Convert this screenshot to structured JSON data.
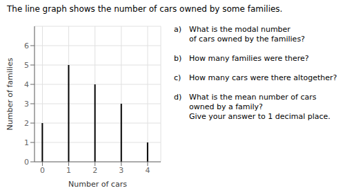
{
  "chart_data": {
    "type": "bar",
    "title": "The line graph shows the number of cars owned by some families.",
    "xlabel": "Number of cars",
    "ylabel": "Number of families",
    "x": [
      0,
      1,
      2,
      3,
      4
    ],
    "values": [
      2,
      5,
      4,
      3,
      1
    ],
    "color": "black",
    "xlim": [
      -0.3,
      4.5
    ],
    "ylim": [
      0,
      7
    ],
    "xticks": [
      0,
      1,
      2,
      3,
      4
    ],
    "yticks": [
      0,
      1,
      2,
      3,
      4,
      5,
      6
    ],
    "grid": true,
    "annotations": [
      {
        "label": "a)",
        "text": "What is the modal number\nof cars owned by the families?"
      },
      {
        "label": "b)",
        "text": "How many families were there?"
      },
      {
        "label": "c)",
        "text": "How many cars were there altogether?"
      },
      {
        "label": "d)",
        "text": "What is the mean number of cars\nowned by a family?\nGive your answer to 1 decimal place."
      }
    ]
  }
}
